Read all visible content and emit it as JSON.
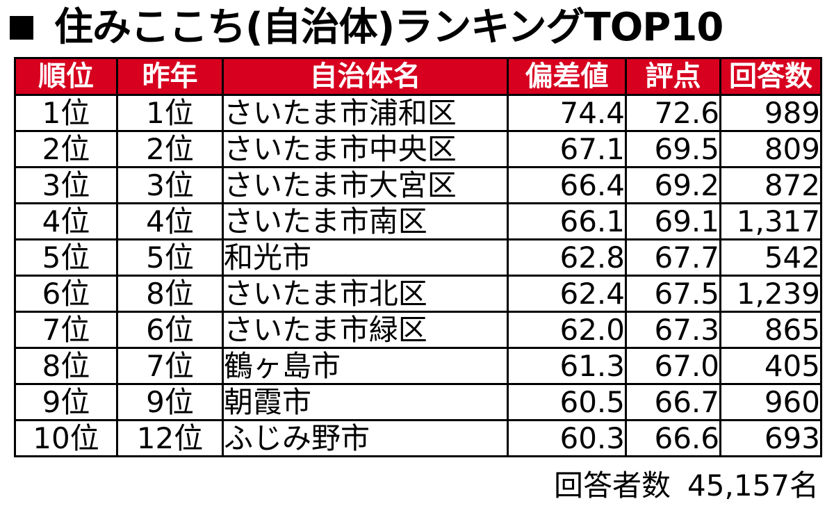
{
  "title": "住みここち(自治体)ランキングTOP10",
  "colors": {
    "header_bg": "#d7001f",
    "header_text": "#ffffff",
    "border": "#000000"
  },
  "table": {
    "headers": [
      "順位",
      "昨年",
      "自治体名",
      "偏差値",
      "評点",
      "回答数"
    ],
    "rows": [
      {
        "rank": "1位",
        "last_year": "1位",
        "municipality": "さいたま市浦和区",
        "deviation": "74.4",
        "score": "72.6",
        "responses": "989"
      },
      {
        "rank": "2位",
        "last_year": "2位",
        "municipality": "さいたま市中央区",
        "deviation": "67.1",
        "score": "69.5",
        "responses": "809"
      },
      {
        "rank": "3位",
        "last_year": "3位",
        "municipality": "さいたま市大宮区",
        "deviation": "66.4",
        "score": "69.2",
        "responses": "872"
      },
      {
        "rank": "4位",
        "last_year": "4位",
        "municipality": "さいたま市南区",
        "deviation": "66.1",
        "score": "69.1",
        "responses": "1,317"
      },
      {
        "rank": "5位",
        "last_year": "5位",
        "municipality": "和光市",
        "deviation": "62.8",
        "score": "67.7",
        "responses": "542"
      },
      {
        "rank": "6位",
        "last_year": "8位",
        "municipality": "さいたま市北区",
        "deviation": "62.4",
        "score": "67.5",
        "responses": "1,239"
      },
      {
        "rank": "7位",
        "last_year": "6位",
        "municipality": "さいたま市緑区",
        "deviation": "62.0",
        "score": "67.3",
        "responses": "865"
      },
      {
        "rank": "8位",
        "last_year": "7位",
        "municipality": "鶴ヶ島市",
        "deviation": "61.3",
        "score": "67.0",
        "responses": "405"
      },
      {
        "rank": "9位",
        "last_year": "9位",
        "municipality": "朝霞市",
        "deviation": "60.5",
        "score": "66.7",
        "responses": "960"
      },
      {
        "rank": "10位",
        "last_year": "12位",
        "municipality": "ふじみ野市",
        "deviation": "60.3",
        "score": "66.6",
        "responses": "693"
      }
    ]
  },
  "footer": {
    "label": "回答者数",
    "value": "45,157名"
  }
}
